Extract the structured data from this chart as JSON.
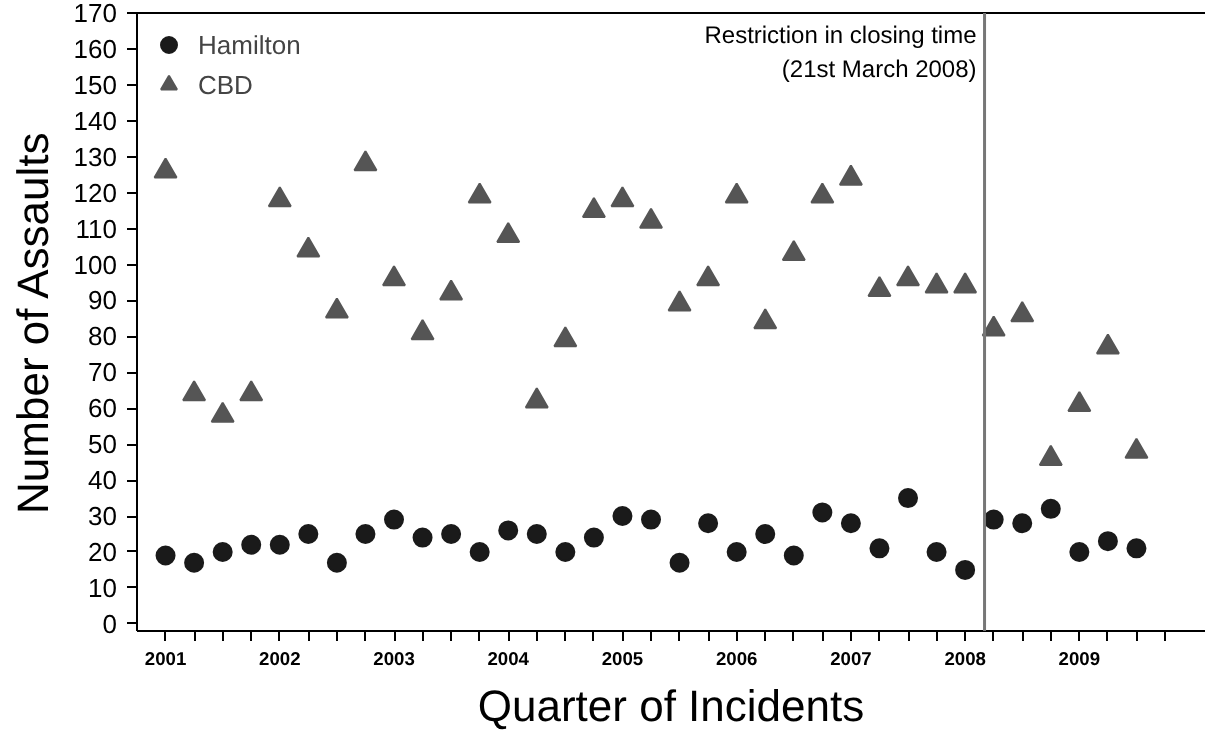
{
  "chart_data": {
    "type": "scatter",
    "xlabel": "Quarter of Incidents",
    "ylabel": "Number of Assaults",
    "x": [
      2001.0,
      2001.25,
      2001.5,
      2001.75,
      2002.0,
      2002.25,
      2002.5,
      2002.75,
      2003.0,
      2003.25,
      2003.5,
      2003.75,
      2004.0,
      2004.25,
      2004.5,
      2004.75,
      2005.0,
      2005.25,
      2005.5,
      2005.75,
      2006.0,
      2006.25,
      2006.5,
      2006.75,
      2007.0,
      2007.25,
      2007.5,
      2007.75,
      2008.0,
      2008.25,
      2008.5,
      2008.75,
      2009.0,
      2009.25,
      2009.5
    ],
    "series": [
      {
        "name": "Hamilton",
        "color": "#1a1a1a",
        "marker": "circle",
        "values": [
          19,
          17,
          20,
          22,
          22,
          25,
          17,
          25,
          29,
          24,
          25,
          20,
          26,
          25,
          20,
          24,
          30,
          29,
          17,
          28,
          20,
          25,
          19,
          31,
          28,
          21,
          35,
          20,
          15,
          29,
          28,
          32,
          20,
          23,
          21
        ]
      },
      {
        "name": "CBD",
        "color": "#555555",
        "marker": "triangle",
        "values": [
          126,
          64,
          58,
          64,
          118,
          104,
          87,
          128,
          96,
          81,
          92,
          119,
          108,
          62,
          79,
          115,
          118,
          112,
          89,
          96,
          119,
          84,
          103,
          119,
          124,
          93,
          96,
          94,
          94,
          82,
          86,
          46,
          61,
          77,
          48
        ]
      }
    ],
    "xlim": [
      2000.75,
      2010.1
    ],
    "xticks": [
      2001,
      {
        "value": 2001.25,
        "label": null
      },
      {
        "value": 2001.5,
        "label": null
      },
      {
        "value": 2001.75,
        "label": null
      },
      2002,
      {
        "value": 2002.25,
        "label": null
      },
      {
        "value": 2002.5,
        "label": null
      },
      {
        "value": 2002.75,
        "label": null
      },
      2003,
      {
        "value": 2003.25,
        "label": null
      },
      {
        "value": 2003.5,
        "label": null
      },
      {
        "value": 2003.75,
        "label": null
      },
      2004,
      {
        "value": 2004.25,
        "label": null
      },
      {
        "value": 2004.5,
        "label": null
      },
      {
        "value": 2004.75,
        "label": null
      },
      2005,
      {
        "value": 2005.25,
        "label": null
      },
      {
        "value": 2005.5,
        "label": null
      },
      {
        "value": 2005.75,
        "label": null
      },
      2006,
      {
        "value": 2006.25,
        "label": null
      },
      {
        "value": 2006.5,
        "label": null
      },
      {
        "value": 2006.75,
        "label": null
      },
      2007,
      {
        "value": 2007.25,
        "label": null
      },
      {
        "value": 2007.5,
        "label": null
      },
      {
        "value": 2007.75,
        "label": null
      },
      2008,
      {
        "value": 2008.25,
        "label": null
      },
      {
        "value": 2008.5,
        "label": null
      },
      {
        "value": 2008.75,
        "label": null
      },
      2009,
      {
        "value": 2009.25,
        "label": null
      },
      {
        "value": 2009.5,
        "label": null
      },
      {
        "value": 2009.75,
        "label": null
      }
    ],
    "ylim": [
      -2,
      170
    ],
    "yticks": [
      0,
      10,
      20,
      30,
      40,
      50,
      60,
      70,
      80,
      90,
      100,
      110,
      120,
      130,
      140,
      150,
      160,
      170
    ],
    "ref_lines": [
      {
        "axis": "x",
        "value": 2008.17,
        "label": "Restriction in closing time\n(21st March 2008)",
        "color": "#777777"
      }
    ],
    "grid": false,
    "legend": "top left"
  }
}
